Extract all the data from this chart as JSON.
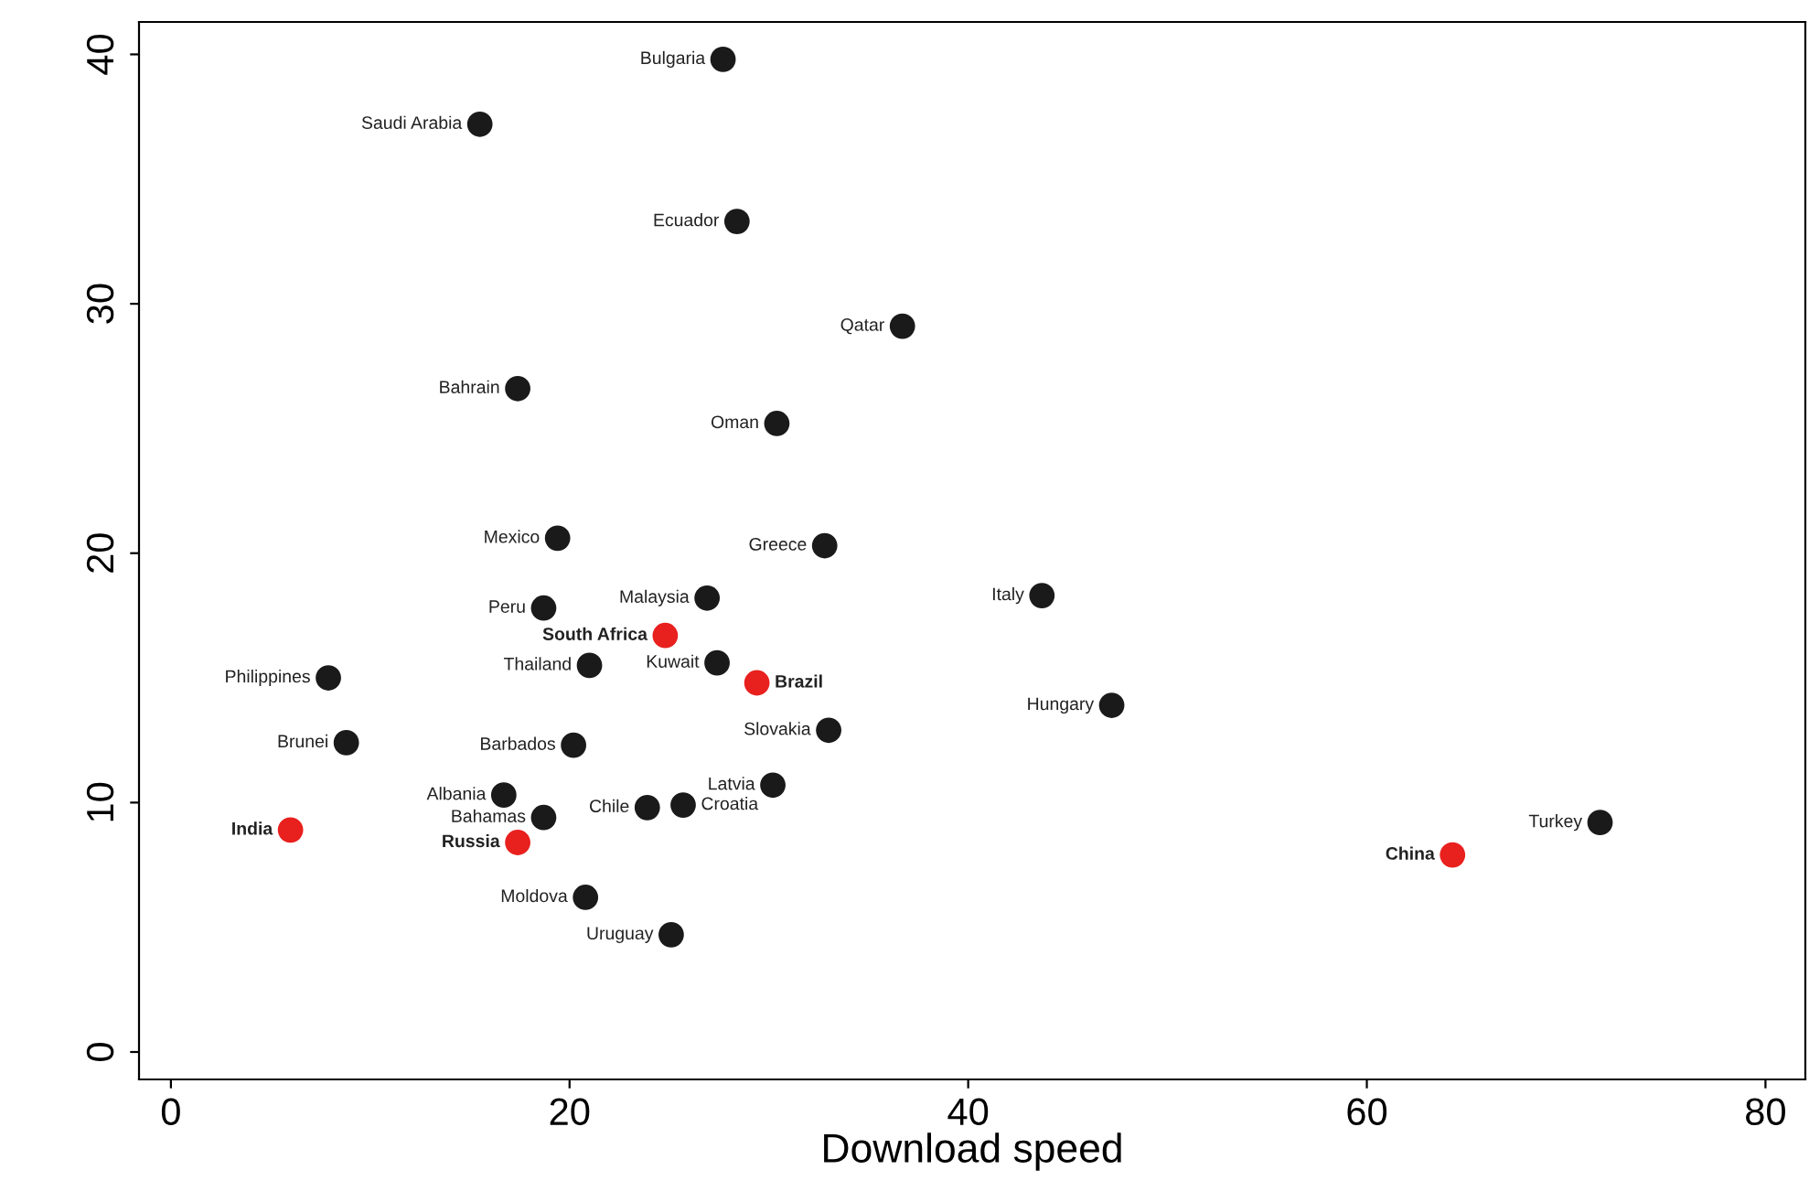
{
  "chart_data": {
    "type": "scatter",
    "xlabel": "Download speed",
    "xlim": [
      -1.6,
      82
    ],
    "ylim": [
      -1.1,
      41.3
    ],
    "xticks": [
      0,
      20,
      40,
      60,
      80
    ],
    "yticks": [
      0,
      10,
      20,
      30,
      40
    ],
    "grid": false,
    "marker": "circle",
    "series": [
      {
        "color": "#1a1a1a",
        "x": [
          27.7,
          15.5,
          28.4,
          36.7,
          17.4,
          30.4,
          19.4,
          32.8,
          18.7,
          26.9,
          43.7,
          21.0,
          27.4,
          7.9,
          47.2,
          8.8,
          20.2,
          33.0,
          30.2,
          16.7,
          25.7,
          23.9,
          18.7,
          71.7,
          20.8,
          25.1
        ],
        "values": [
          39.8,
          37.2,
          33.3,
          29.1,
          26.6,
          25.2,
          20.6,
          20.3,
          17.8,
          18.2,
          18.3,
          15.5,
          15.6,
          15.0,
          13.9,
          12.4,
          12.3,
          12.9,
          10.7,
          10.3,
          9.9,
          9.8,
          9.4,
          9.2,
          6.2,
          4.7
        ]
      },
      {
        "color": "#e8201e",
        "x": [
          24.8,
          29.4,
          6.0,
          17.4,
          64.3
        ],
        "values": [
          16.7,
          14.8,
          8.9,
          8.4,
          7.9
        ]
      }
    ],
    "annotations": [
      {
        "text": "Bulgaria",
        "x": 27.7,
        "y": 39.8
      },
      {
        "text": "Saudi Arabia",
        "x": 15.5,
        "y": 37.2
      },
      {
        "text": "Ecuador",
        "x": 28.4,
        "y": 33.3
      },
      {
        "text": "Qatar",
        "x": 36.7,
        "y": 29.1
      },
      {
        "text": "Bahrain",
        "x": 17.4,
        "y": 26.6
      },
      {
        "text": "Oman",
        "x": 30.4,
        "y": 25.2
      },
      {
        "text": "Mexico",
        "x": 19.4,
        "y": 20.6
      },
      {
        "text": "Greece",
        "x": 32.8,
        "y": 20.3
      },
      {
        "text": "Peru",
        "x": 18.7,
        "y": 17.8
      },
      {
        "text": "Malaysia",
        "x": 26.9,
        "y": 18.2
      },
      {
        "text": "Italy",
        "x": 43.7,
        "y": 18.3
      },
      {
        "text": "Thailand",
        "x": 21.0,
        "y": 15.5
      },
      {
        "text": "Kuwait",
        "x": 27.4,
        "y": 15.6
      },
      {
        "text": "Philippines",
        "x": 7.9,
        "y": 15.0
      },
      {
        "text": "Hungary",
        "x": 47.2,
        "y": 13.9
      },
      {
        "text": "Brunei",
        "x": 8.8,
        "y": 12.4
      },
      {
        "text": "Barbados",
        "x": 20.2,
        "y": 12.3
      },
      {
        "text": "Slovakia",
        "x": 33.0,
        "y": 12.9
      },
      {
        "text": "Latvia",
        "x": 30.2,
        "y": 10.7
      },
      {
        "text": "Albania",
        "x": 16.7,
        "y": 10.3
      },
      {
        "text": "Croatia",
        "x": 25.7,
        "y": 9.9
      },
      {
        "text": "Chile",
        "x": 23.9,
        "y": 9.8
      },
      {
        "text": "Bahamas",
        "x": 18.7,
        "y": 9.4
      },
      {
        "text": "Turkey",
        "x": 71.7,
        "y": 9.2
      },
      {
        "text": "Moldova",
        "x": 20.8,
        "y": 6.2
      },
      {
        "text": "Uruguay",
        "x": 25.1,
        "y": 4.7
      },
      {
        "text": "South Africa",
        "x": 24.8,
        "y": 16.7
      },
      {
        "text": "Brazil",
        "x": 29.4,
        "y": 14.8
      },
      {
        "text": "India",
        "x": 6.0,
        "y": 8.9
      },
      {
        "text": "Russia",
        "x": 17.4,
        "y": 8.4
      },
      {
        "text": "China",
        "x": 64.3,
        "y": 7.9
      }
    ]
  }
}
